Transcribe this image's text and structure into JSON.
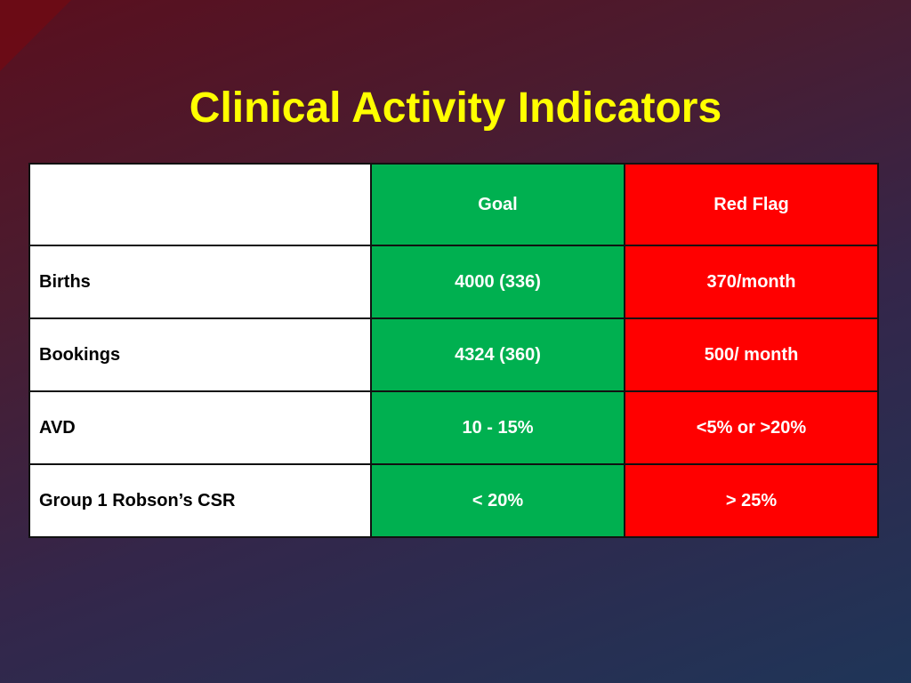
{
  "slide": {
    "title": "Clinical Activity Indicators"
  },
  "table": {
    "headers": [
      "",
      "Goal",
      "Red Flag"
    ],
    "rows": [
      {
        "label": "Births",
        "goal": "4000 (336)",
        "red_flag": "370/month"
      },
      {
        "label": "Bookings",
        "goal": "4324 (360)",
        "red_flag": "500/ month"
      },
      {
        "label": "AVD",
        "goal": "10 - 15%",
        "red_flag": "<5% or >20%"
      },
      {
        "label": "Group 1 Robson’s CSR",
        "goal": "< 20%",
        "red_flag": "> 25%"
      }
    ]
  },
  "colors": {
    "title": "#ffff00",
    "goal_column": "#00b050",
    "red_flag_column": "#ff0000",
    "label_column": "#ffffff"
  }
}
